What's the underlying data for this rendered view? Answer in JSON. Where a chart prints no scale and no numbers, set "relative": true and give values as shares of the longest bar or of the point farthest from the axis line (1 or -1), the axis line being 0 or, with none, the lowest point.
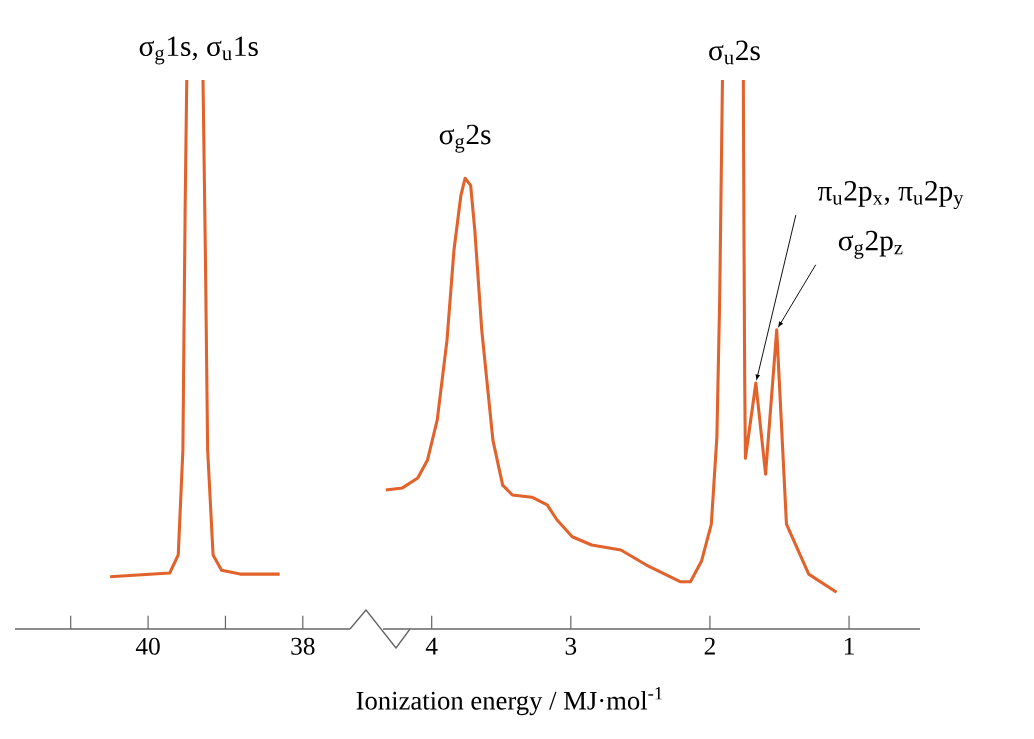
{
  "chart_data": [
    {
      "type": "line",
      "relative": true,
      "xlim": [
        41.72,
        37.39
      ],
      "xticks": [
        {
          "value": 41,
          "label": null
        },
        40,
        {
          "value": 39,
          "label": null
        },
        38
      ],
      "tick_labels": "x",
      "annotations": [
        {
          "text": "σ$_{g}$1s, σ$_{u}$1s",
          "x": 39.5,
          "y": 1
        }
      ],
      "series": [
        {
          "color": "#e2622b",
          "x": [
            40.49,
            39.72,
            39.61,
            39.55,
            39.52,
            39.5,
            39.4,
            39.29,
            39.26,
            39.23,
            39.16,
            39.05,
            38.81,
            38.3
          ],
          "values": [
            0.095,
            0.102,
            0.135,
            0.326,
            0.78,
            1,
            null,
            1,
            0.69,
            0.326,
            0.135,
            0.107,
            0.1,
            0.1
          ]
        }
      ]
    },
    {
      "type": "line",
      "relative": true,
      "xlim": [
        4.35,
        0.49
      ],
      "xticks": [
        4,
        3,
        2,
        1
      ],
      "tick_labels": "x",
      "xlabel": "Ionization energy / MJ·mol$^{-1}$",
      "annotations": [
        {
          "text": "σ$_{g}$2s",
          "x": 3.76,
          "y": 0.821
        },
        {
          "text": "σ$_{u}$2s",
          "x": 1.91,
          "y": 1
        },
        {
          "text": "π$_{u}$2p$_{x}$, π$_{u}$2p$_{y}$",
          "x": 1.67,
          "y": 0.448
        },
        {
          "text": "σ$_{g}$2p$_{z}$",
          "x": 1.52,
          "y": 0.545
        }
      ],
      "series": [
        {
          "color": "#e2622b",
          "x": [
            4.33,
            4.21,
            4.1,
            4.03,
            3.96,
            3.89,
            3.84,
            3.79,
            3.76,
            3.72,
            3.69,
            3.64,
            3.56,
            3.49,
            3.42,
            3.28,
            3.17,
            3.1,
            2.99,
            2.85,
            2.64,
            2.46,
            2.31,
            2.21,
            2.14,
            2.06,
            1.99,
            1.95,
            1.93,
            1.91,
            1.84,
            1.76,
            1.755,
            1.75,
            1.745,
            1.67,
            1.6,
            1.52,
            1.45,
            1.29,
            1.09
          ],
          "values": [
            0.253,
            0.257,
            0.275,
            0.308,
            0.381,
            0.526,
            0.69,
            0.79,
            0.821,
            0.808,
            0.726,
            0.544,
            0.344,
            0.262,
            0.244,
            0.24,
            0.226,
            0.199,
            0.168,
            0.153,
            0.144,
            0.117,
            0.098,
            0.086,
            0.086,
            0.124,
            0.191,
            0.35,
            0.6,
            1,
            null,
            1,
            0.7,
            0.45,
            0.311,
            0.448,
            0.282,
            0.545,
            0.191,
            0.1,
            0.067
          ]
        }
      ]
    }
  ]
}
